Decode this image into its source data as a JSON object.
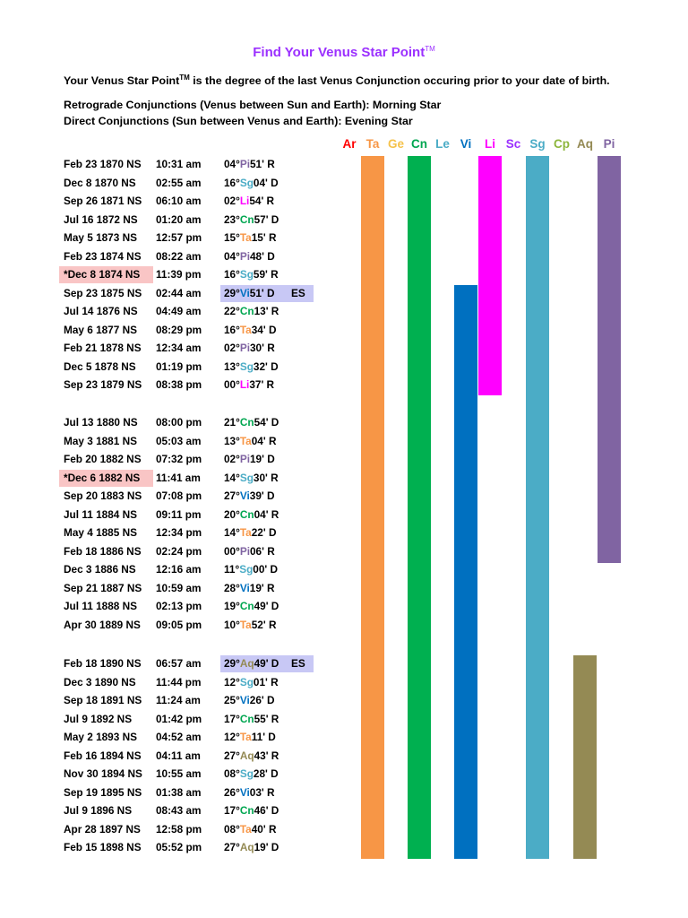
{
  "title": "Find Your Venus Star Point",
  "title_tm": "TM",
  "intro": {
    "line1_a": "Your Venus Star Point",
    "line1_tm": "TM",
    "line1_b": " is the degree of the last Venus Conjunction occuring prior to your date of birth.",
    "line2": "Retrograde Conjunctions (Venus between Sun and Earth):  Morning Star",
    "line3": "Direct Conjunctions (Sun between Venus and Earth):  Evening Star"
  },
  "sign_colors": {
    "Ar": "#ff0000",
    "Ta": "#f79646",
    "Ge": "#f5c24b",
    "Cn": "#00a650",
    "Le": "#4bacc6",
    "Vi": "#0070c0",
    "Li": "#ff00ff",
    "Sc": "#9b30ff",
    "Sg": "#4bacc6",
    "Cp": "#8db63c",
    "Aq": "#948a54",
    "Pi": "#8064a2"
  },
  "bar_colors": {
    "Ta": "#f79646",
    "Cn": "#00b050",
    "Vi": "#0070c0",
    "Li": "#ff00ff",
    "Sg": "#4bacc6",
    "Aq": "#948a54",
    "Pi": "#8064a2"
  },
  "signs": [
    "Ar",
    "Ta",
    "Ge",
    "Cn",
    "Le",
    "Vi",
    "Li",
    "Sc",
    "Sg",
    "Cp",
    "Aq",
    "Pi"
  ],
  "rows": [
    {
      "date": "Feb 23 1870 NS",
      "time": "10:31 am",
      "deg": "04°",
      "sign": "Pi",
      "min": "51' R"
    },
    {
      "date": "Dec 8 1870 NS",
      "time": "02:55 am",
      "deg": "16°",
      "sign": "Sg",
      "min": "04' D"
    },
    {
      "date": "Sep 26 1871 NS",
      "time": "06:10 am",
      "deg": "02°",
      "sign": "Li",
      "min": "54' R"
    },
    {
      "date": "Jul 16 1872 NS",
      "time": "01:20 am",
      "deg": "23°",
      "sign": "Cn",
      "min": "57' D"
    },
    {
      "date": "May 5 1873 NS",
      "time": "12:57 pm",
      "deg": "15°",
      "sign": "Ta",
      "min": "15' R"
    },
    {
      "date": "Feb 23 1874 NS",
      "time": "08:22 am",
      "deg": "04°",
      "sign": "Pi",
      "min": "48' D"
    },
    {
      "date": "*Dec 8 1874 NS",
      "time": "11:39 pm",
      "deg": "16°",
      "sign": "Sg",
      "min": "59' R",
      "mark": "red"
    },
    {
      "date": "Sep 23 1875 NS",
      "time": "02:44 am",
      "deg": "29°",
      "sign": "Vi",
      "min": "51' D",
      "mark": "blue",
      "note": "ES"
    },
    {
      "date": "Jul 14 1876 NS",
      "time": "04:49 am",
      "deg": "22°",
      "sign": "Cn",
      "min": "13' R"
    },
    {
      "date": "May 6 1877 NS",
      "time": "08:29 pm",
      "deg": "16°",
      "sign": "Ta",
      "min": "34' D"
    },
    {
      "date": "Feb 21 1878 NS",
      "time": "12:34 am",
      "deg": "02°",
      "sign": "Pi",
      "min": "30' R"
    },
    {
      "date": "Dec 5 1878 NS",
      "time": "01:19 pm",
      "deg": "13°",
      "sign": "Sg",
      "min": "32' D"
    },
    {
      "date": "Sep 23 1879 NS",
      "time": "08:38 pm",
      "deg": "00°",
      "sign": "Li",
      "min": "37' R"
    },
    {
      "date": "Jul 13 1880 NS",
      "time": "08:00 pm",
      "deg": "21°",
      "sign": "Cn",
      "min": "54' D"
    },
    {
      "date": "May 3 1881 NS",
      "time": "05:03 am",
      "deg": "13°",
      "sign": "Ta",
      "min": "04' R"
    },
    {
      "date": "Feb 20 1882 NS",
      "time": "07:32 pm",
      "deg": "02°",
      "sign": "Pi",
      "min": "19' D"
    },
    {
      "date": "*Dec 6 1882 NS",
      "time": "11:41 am",
      "deg": "14°",
      "sign": "Sg",
      "min": "30' R",
      "mark": "red"
    },
    {
      "date": "Sep 20 1883 NS",
      "time": "07:08 pm",
      "deg": "27°",
      "sign": "Vi",
      "min": "39' D"
    },
    {
      "date": "Jul 11 1884 NS",
      "time": "09:11 pm",
      "deg": "20°",
      "sign": "Cn",
      "min": "04' R"
    },
    {
      "date": "May 4 1885 NS",
      "time": "12:34 pm",
      "deg": "14°",
      "sign": "Ta",
      "min": "22' D"
    },
    {
      "date": "Feb 18 1886 NS",
      "time": "02:24 pm",
      "deg": "00°",
      "sign": "Pi",
      "min": "06' R"
    },
    {
      "date": "Dec 3 1886 NS",
      "time": "12:16 am",
      "deg": "11°",
      "sign": "Sg",
      "min": "00' D"
    },
    {
      "date": "Sep 21 1887 NS",
      "time": "10:59 am",
      "deg": "28°",
      "sign": "Vi",
      "min": "19' R"
    },
    {
      "date": "Jul 11 1888 NS",
      "time": "02:13 pm",
      "deg": "19°",
      "sign": "Cn",
      "min": "49' D"
    },
    {
      "date": "Apr 30 1889 NS",
      "time": "09:05 pm",
      "deg": "10°",
      "sign": "Ta",
      "min": "52' R"
    },
    {
      "date": "Feb 18 1890 NS",
      "time": "06:57 am",
      "deg": "29°",
      "sign": "Aq",
      "min": "49' D",
      "mark": "blue",
      "note": "ES"
    },
    {
      "date": "Dec 3 1890 NS",
      "time": "11:44 pm",
      "deg": "12°",
      "sign": "Sg",
      "min": "01' R"
    },
    {
      "date": "Sep 18 1891 NS",
      "time": "11:24 am",
      "deg": "25°",
      "sign": "Vi",
      "min": "26' D"
    },
    {
      "date": "Jul 9 1892 NS",
      "time": "01:42 pm",
      "deg": "17°",
      "sign": "Cn",
      "min": "55' R"
    },
    {
      "date": "May 2 1893 NS",
      "time": "04:52 am",
      "deg": "12°",
      "sign": "Ta",
      "min": "11' D"
    },
    {
      "date": "Feb 16 1894 NS",
      "time": "04:11 am",
      "deg": "27°",
      "sign": "Aq",
      "min": "43' R"
    },
    {
      "date": "Nov 30 1894 NS",
      "time": "10:55 am",
      "deg": "08°",
      "sign": "Sg",
      "min": "28' D"
    },
    {
      "date": "Sep 19 1895 NS",
      "time": "01:38 am",
      "deg": "26°",
      "sign": "Vi",
      "min": "03' R"
    },
    {
      "date": "Jul 9 1896 NS",
      "time": "08:43 am",
      "deg": "17°",
      "sign": "Cn",
      "min": "46' D"
    },
    {
      "date": "Apr 28 1897 NS",
      "time": "12:58 pm",
      "deg": "08°",
      "sign": "Ta",
      "min": "40' R"
    },
    {
      "date": "Feb 15 1898 NS",
      "time": "05:52 pm",
      "deg": "27°",
      "sign": "Aq",
      "min": "19' D"
    }
  ]
}
